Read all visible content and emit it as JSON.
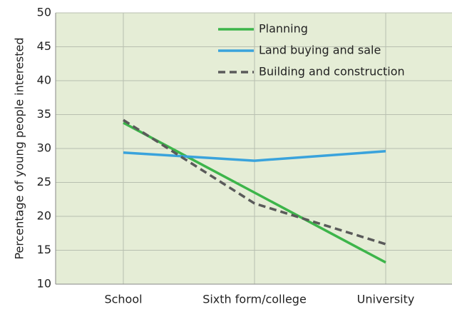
{
  "chart_data": {
    "type": "line",
    "ylabel": "Percentage of young people interested",
    "categories": [
      "School",
      "Sixth form/college",
      "University"
    ],
    "series": [
      {
        "name": "Planning",
        "color": "#3db54a",
        "dashed": false,
        "values": [
          33.8,
          23.5,
          13.2
        ]
      },
      {
        "name": "Land buying and sale",
        "color": "#3aa3dc",
        "dashed": false,
        "values": [
          29.4,
          28.2,
          29.6
        ]
      },
      {
        "name": "Building and construction",
        "color": "#5a5a5a",
        "dashed": true,
        "values": [
          34.2,
          21.9,
          15.9
        ]
      }
    ],
    "ylim": [
      10,
      50
    ],
    "yticks": [
      10,
      15,
      20,
      25,
      30,
      35,
      40,
      45,
      50
    ],
    "grid": true,
    "legend": "top-right"
  }
}
